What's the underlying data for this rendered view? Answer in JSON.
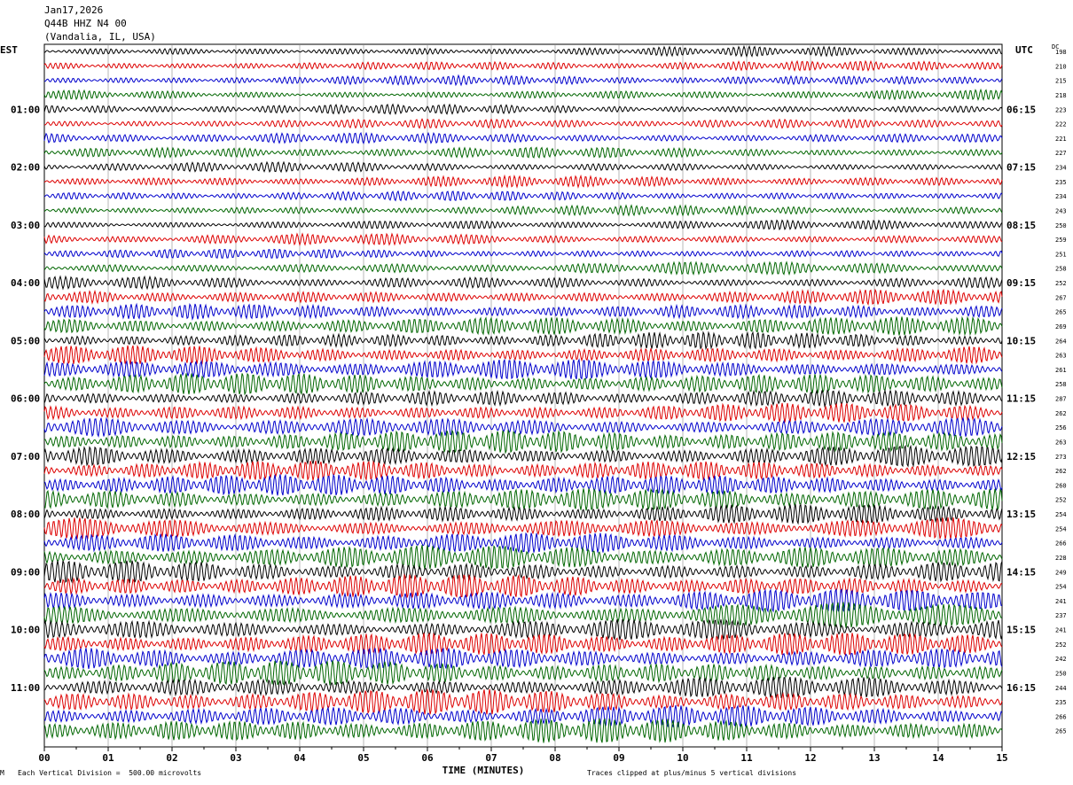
{
  "header": {
    "date": "Jan17,2026",
    "station": "Q44B HHZ N4 00",
    "location": "(Vandalia, IL, USA)"
  },
  "left_tz": "EST",
  "right_tz": "UTC",
  "dc_label": "DC",
  "footer": {
    "scale_note": "Each Vertical Division =  500.00 microvolts",
    "clip_note": "Traces clipped at plus/minus 5 vertical divisions",
    "marker": "M"
  },
  "colors": {
    "trace_cycle": [
      "#000000",
      "#dd0000",
      "#0000cc",
      "#006600"
    ],
    "grid": "#000000"
  },
  "chart_data": {
    "type": "line",
    "description_type": "helicorder",
    "xlabel": "TIME (MINUTES)",
    "x_ticks": [
      "00",
      "01",
      "02",
      "03",
      "04",
      "05",
      "06",
      "07",
      "08",
      "09",
      "10",
      "11",
      "12",
      "13",
      "14",
      "15"
    ],
    "xlim": [
      0,
      15
    ],
    "trace_minutes": 15,
    "est_hour_labels": [
      "01:00",
      "02:00",
      "03:00",
      "04:00",
      "05:00",
      "06:00",
      "07:00",
      "08:00",
      "09:00",
      "10:00",
      "11:00"
    ],
    "utc_hour_labels": [
      "06:15",
      "07:15",
      "08:15",
      "09:15",
      "10:15",
      "11:15",
      "12:15",
      "13:15",
      "14:15",
      "15:15",
      "16:15"
    ],
    "dc_offsets": [
      198,
      210,
      215,
      218,
      223,
      222,
      221,
      227,
      234,
      235,
      234,
      243,
      250,
      259,
      251,
      258,
      252,
      267,
      265,
      269,
      264,
      263,
      261,
      258,
      287,
      262,
      256,
      263,
      273,
      262,
      260,
      252,
      254,
      254,
      266,
      228,
      249,
      254,
      241,
      237,
      241,
      252,
      242,
      250,
      244,
      235,
      266,
      265
    ],
    "trace_amplitude": [
      0.35,
      0.35,
      0.35,
      0.35,
      0.35,
      0.35,
      0.4,
      0.4,
      0.35,
      0.4,
      0.35,
      0.35,
      0.35,
      0.4,
      0.35,
      0.45,
      0.45,
      0.55,
      0.6,
      0.7,
      0.6,
      0.7,
      0.75,
      0.85,
      0.6,
      0.7,
      0.75,
      0.85,
      0.8,
      0.75,
      0.8,
      0.85,
      0.7,
      0.8,
      0.75,
      0.9,
      0.8,
      0.85,
      0.85,
      0.9,
      0.8,
      0.9,
      0.85,
      0.9,
      0.8,
      0.9,
      0.8,
      0.9
    ]
  }
}
